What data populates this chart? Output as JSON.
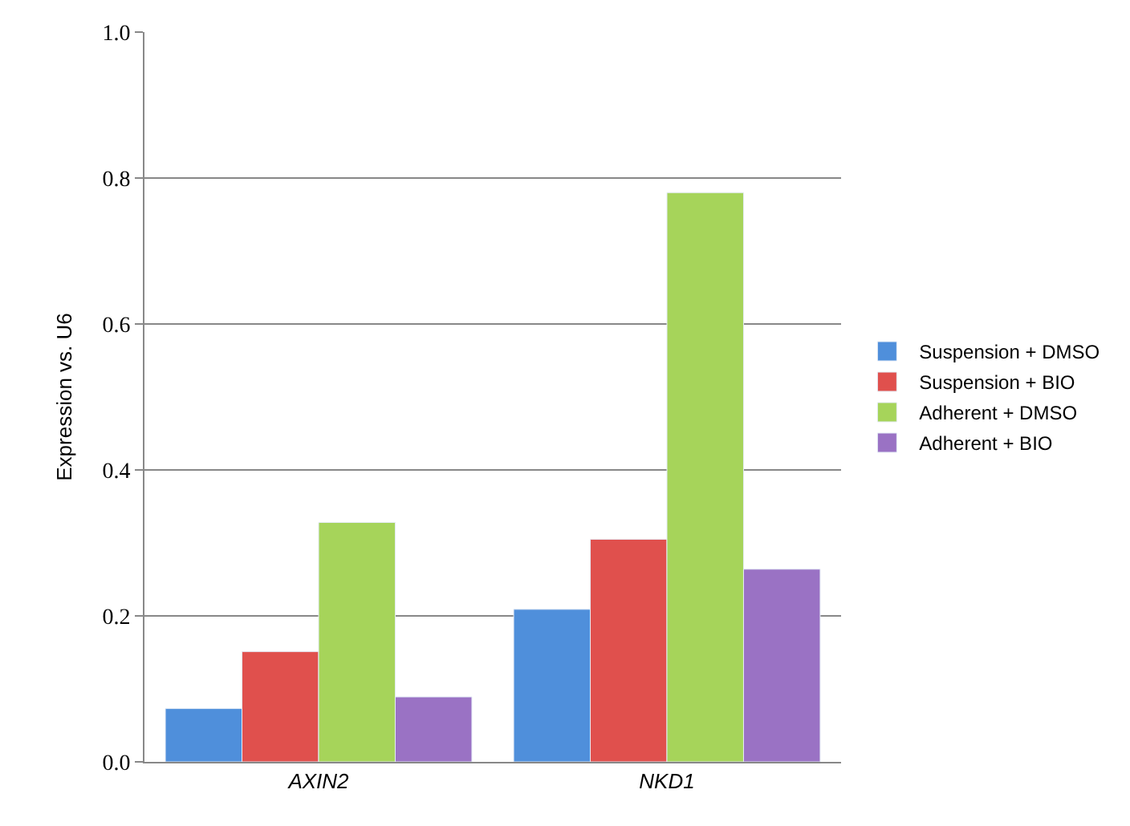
{
  "chart_data": {
    "type": "bar",
    "ylabel": "Expression vs. U6",
    "categories": [
      "AXIN2",
      "NKD1"
    ],
    "series": [
      {
        "name": "Suspension + DMSO",
        "color": "#4f8fdb",
        "values": [
          0.073,
          0.209
        ]
      },
      {
        "name": "Suspension + BIO",
        "color": "#e0504d",
        "values": [
          0.151,
          0.305
        ]
      },
      {
        "name": "Adherent + DMSO",
        "color": "#a6d45a",
        "values": [
          0.328,
          0.78
        ]
      },
      {
        "name": "Adherent + BIO",
        "color": "#9a72c4",
        "values": [
          0.089,
          0.264
        ]
      }
    ],
    "ylim": [
      0,
      1
    ],
    "yticks": [
      {
        "value": 0,
        "label": "0.0"
      },
      {
        "value": 0.2,
        "label": "0.2"
      },
      {
        "value": 0.4,
        "label": "0.4"
      },
      {
        "value": 0.6,
        "label": "0.6"
      },
      {
        "value": 0.8,
        "label": "0.8"
      },
      {
        "value": 1,
        "label": "1.0"
      }
    ],
    "grid": "y",
    "legend": "right"
  }
}
